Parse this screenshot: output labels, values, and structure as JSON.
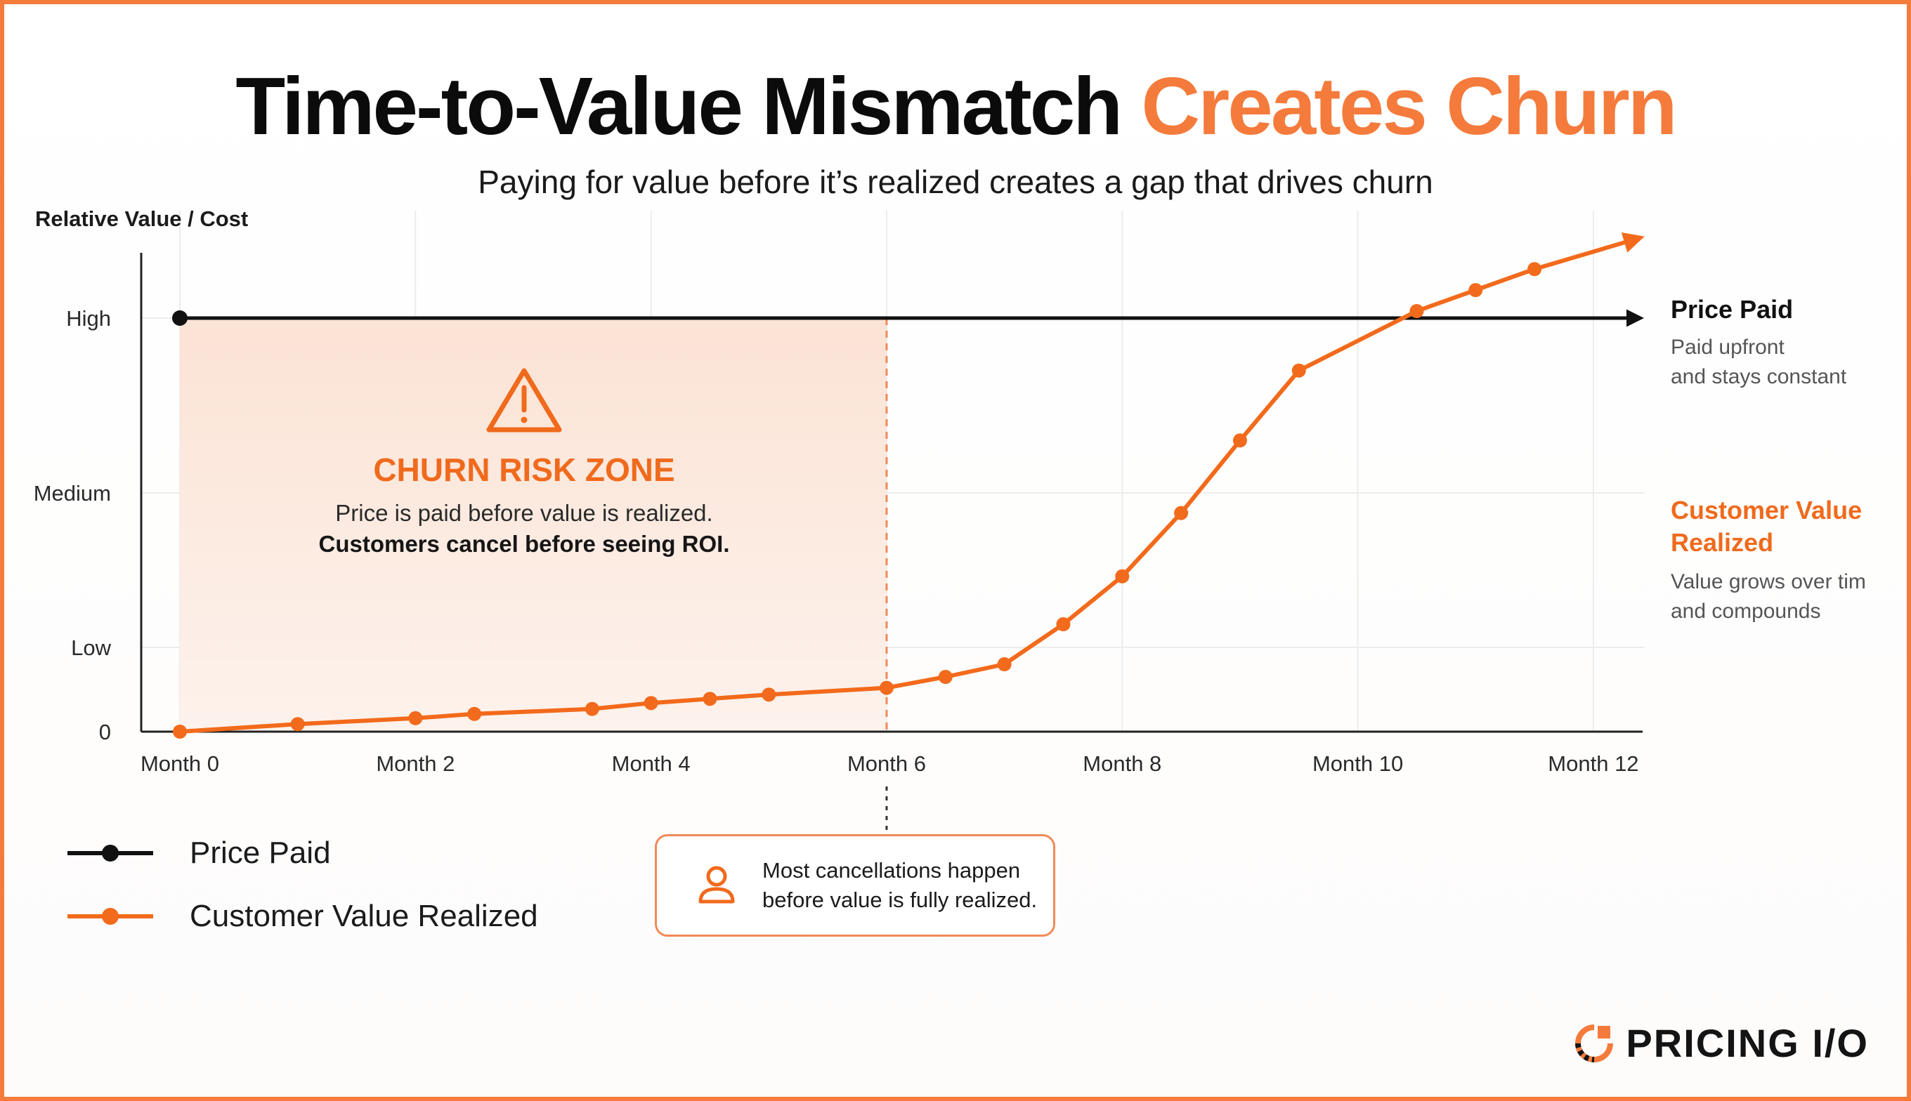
{
  "header": {
    "title_main": "Time-to-Value Mismatch",
    "title_accent": "Creates Churn",
    "subtitle": "Paying for value before it’s realized creates a gap that drives churn"
  },
  "chart_data": {
    "type": "line",
    "ylabel": "Relative Value / Cost",
    "y_ticks": [
      {
        "label": "0",
        "value": 0
      },
      {
        "label": "Low",
        "value": 1
      },
      {
        "label": "Medium",
        "value": 2
      },
      {
        "label": "High",
        "value": 3
      }
    ],
    "x_ticks": [
      "Month 0",
      "Month 2",
      "Month 4",
      "Month 6",
      "Month 8",
      "Month 10",
      "Month 12"
    ],
    "x_tick_values": [
      0,
      2,
      4,
      6,
      8,
      10,
      12
    ],
    "xlim": [
      0,
      12.4
    ],
    "ylim": [
      0,
      3
    ],
    "grid": "vertical and horizontal, light",
    "series": [
      {
        "name": "Price Paid",
        "color": "#111111",
        "x": [
          0,
          12.4
        ],
        "y": [
          3,
          3
        ]
      },
      {
        "name": "Customer Value Realized",
        "color": "#f26a1b",
        "x": [
          0,
          1,
          2,
          2.5,
          3.5,
          4,
          4.5,
          5,
          6,
          6.5,
          7,
          7.5,
          8,
          8.5,
          9,
          9.5,
          10.5,
          11.5,
          12.4
        ],
        "y": [
          0,
          0.09,
          0.16,
          0.21,
          0.27,
          0.34,
          0.39,
          0.44,
          0.52,
          0.65,
          0.8,
          1.15,
          1.46,
          1.87,
          2.3,
          2.7,
          3.04,
          3.28,
          3.46
        ],
        "marker_x": [
          0,
          1,
          2,
          2.5,
          3.5,
          4,
          4.5,
          5,
          6,
          6.5,
          7,
          7.5,
          8,
          8.5,
          9,
          9.5,
          10.5,
          11,
          11.5
        ],
        "marker_y": [
          0,
          0.09,
          0.16,
          0.21,
          0.27,
          0.34,
          0.39,
          0.44,
          0.52,
          0.65,
          0.8,
          1.15,
          1.46,
          1.87,
          2.3,
          2.7,
          3.04,
          3.16,
          3.28
        ]
      }
    ],
    "zone": {
      "x_start": 0,
      "x_end": 6,
      "color": "#fbe6da"
    },
    "legend_placement": "bottom-left"
  },
  "zone_labels": {
    "title": "CHURN RISK ZONE",
    "line1": "Price is paid before value is realized.",
    "line2": "Customers cancel before seeing ROI."
  },
  "right_labels": {
    "price_title": "Price Paid",
    "price_desc1": "Paid upfront",
    "price_desc2": "and stays constant",
    "value_title1": "Customer Value",
    "value_title2": "Realized",
    "value_desc1": "Value grows over tim",
    "value_desc2": "and compounds"
  },
  "legend": {
    "price": "Price Paid",
    "value": "Customer Value Realized"
  },
  "callout": {
    "line1": "Most cancellations happen",
    "line2": "before value is fully realized.",
    "icon": "person-icon"
  },
  "brand": {
    "name": "PRICING I/O",
    "icon": "pricing-io-logo-icon",
    "accent_color": "#f47b3c"
  },
  "colors": {
    "accent": "#f47b3c",
    "value_line": "#f26a1b",
    "price_line": "#111111"
  }
}
